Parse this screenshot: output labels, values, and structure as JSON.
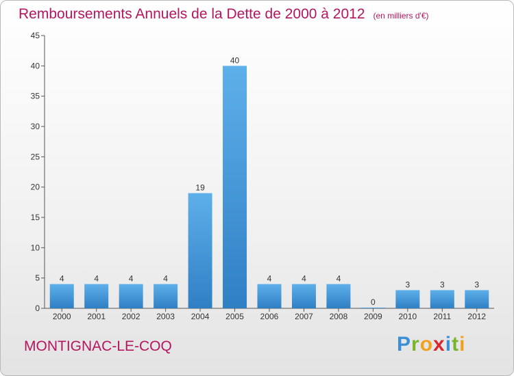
{
  "chart_data": {
    "type": "bar",
    "title": "Remboursements Annuels de la Dette de 2000 à 2012",
    "unit_note": "(en milliers d'€)",
    "categories": [
      "2000",
      "2001",
      "2002",
      "2003",
      "2004",
      "2005",
      "2006",
      "2007",
      "2008",
      "2009",
      "2010",
      "2011",
      "2012"
    ],
    "values": [
      4,
      4,
      4,
      4,
      19,
      40,
      4,
      4,
      4,
      0,
      3,
      3,
      3
    ],
    "ylim": [
      0,
      45
    ],
    "yticks": [
      0,
      5,
      10,
      15,
      20,
      25,
      30,
      35,
      40,
      45
    ],
    "grid": false,
    "bar_color": "#4a9de0",
    "xlabel": "",
    "ylabel": ""
  },
  "footer": {
    "town": "MONTIGNAC-LE-COQ",
    "brand": [
      "P",
      "r",
      "o",
      "x",
      "i",
      "t",
      "i"
    ]
  },
  "colors": {
    "title": "#b5155f",
    "town": "#b5155f"
  }
}
